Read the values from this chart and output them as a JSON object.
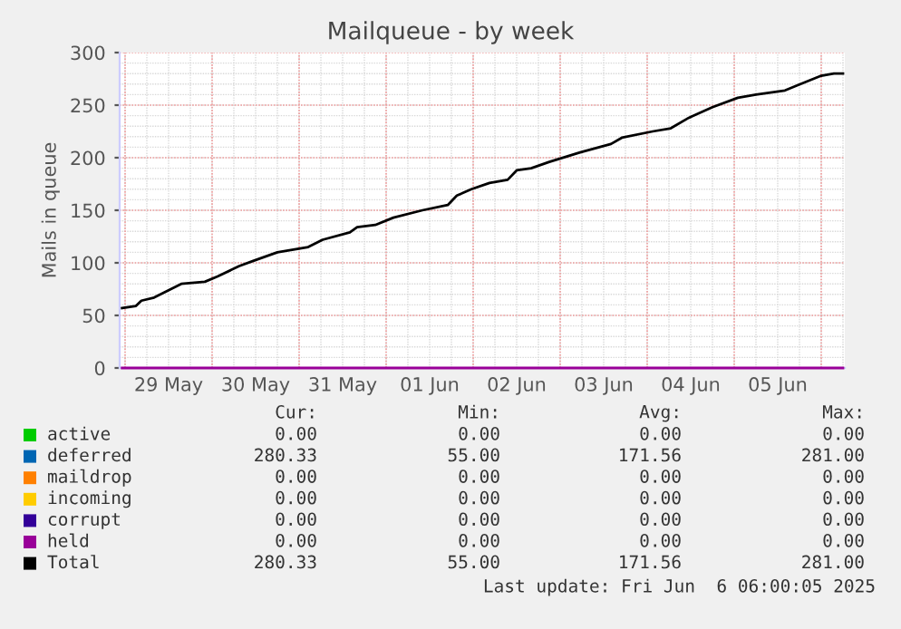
{
  "chart_data": {
    "type": "line",
    "title": "Mailqueue - by week",
    "ylabel": "Mails in queue",
    "x": [
      "2025-05-28T23:10",
      "2025-05-29T03:00",
      "2025-05-29T04:30",
      "2025-05-29T08:00",
      "2025-05-29T12:00",
      "2025-05-29T15:30",
      "2025-05-29T22:00",
      "2025-05-30T01:30",
      "2025-05-30T07:30",
      "2025-05-30T11:30",
      "2025-05-30T18:00",
      "2025-05-31T02:30",
      "2025-05-31T06:30",
      "2025-05-31T14:00",
      "2025-05-31T16:00",
      "2025-05-31T21:00",
      "2025-06-01T02:00",
      "2025-06-01T10:00",
      "2025-06-01T17:00",
      "2025-06-01T19:30",
      "2025-06-01T23:30",
      "2025-06-02T04:30",
      "2025-06-02T09:30",
      "2025-06-02T12:00",
      "2025-06-02T16:00",
      "2025-06-02T21:00",
      "2025-06-03T05:30",
      "2025-06-03T14:00",
      "2025-06-03T17:00",
      "2025-06-04T01:30",
      "2025-06-04T06:30",
      "2025-06-04T11:30",
      "2025-06-04T18:00",
      "2025-06-05T01:00",
      "2025-06-05T06:00",
      "2025-06-05T14:00",
      "2025-06-05T17:30",
      "2025-06-06T00:00",
      "2025-06-06T03:30",
      "2025-06-06T06:00"
    ],
    "series": [
      {
        "name": "active",
        "color": "#00cc00",
        "values": [
          null,
          null,
          null,
          null,
          null,
          null,
          null,
          null,
          null,
          null,
          null,
          null,
          null,
          null,
          null,
          null,
          null,
          null,
          null,
          null,
          null,
          null,
          null,
          null,
          null,
          null,
          null,
          null,
          null,
          null,
          null,
          null,
          null,
          null,
          null,
          null,
          null,
          null,
          null,
          null
        ]
      },
      {
        "name": "deferred",
        "color": "#0066b3",
        "values": [
          null,
          null,
          null,
          null,
          null,
          null,
          null,
          null,
          null,
          null,
          null,
          null,
          null,
          null,
          null,
          null,
          null,
          null,
          null,
          null,
          null,
          null,
          null,
          null,
          null,
          null,
          null,
          null,
          null,
          null,
          null,
          null,
          null,
          null,
          null,
          null,
          null,
          null,
          null,
          null
        ]
      },
      {
        "name": "maildrop",
        "color": "#ff8000",
        "values": [
          null,
          null,
          null,
          null,
          null,
          null,
          null,
          null,
          null,
          null,
          null,
          null,
          null,
          null,
          null,
          null,
          null,
          null,
          null,
          null,
          null,
          null,
          null,
          null,
          null,
          null,
          null,
          null,
          null,
          null,
          null,
          null,
          null,
          null,
          null,
          null,
          null,
          null,
          null,
          null
        ]
      },
      {
        "name": "incoming",
        "color": "#ffcc00",
        "values": [
          null,
          null,
          null,
          null,
          null,
          null,
          null,
          null,
          null,
          null,
          null,
          null,
          null,
          null,
          null,
          null,
          null,
          null,
          null,
          null,
          null,
          null,
          null,
          null,
          null,
          null,
          null,
          null,
          null,
          null,
          null,
          null,
          null,
          null,
          null,
          null,
          null,
          null,
          null,
          null
        ]
      },
      {
        "name": "corrupt",
        "color": "#330099",
        "values": [
          null,
          null,
          null,
          null,
          null,
          null,
          null,
          null,
          null,
          null,
          null,
          null,
          null,
          null,
          null,
          null,
          null,
          null,
          null,
          null,
          null,
          null,
          null,
          null,
          null,
          null,
          null,
          null,
          null,
          null,
          null,
          null,
          null,
          null,
          null,
          null,
          null,
          null,
          null,
          null
        ]
      },
      {
        "name": "held",
        "color": "#990099",
        "x": [
          "2025-05-28T23:10",
          "2025-06-06T06:00"
        ],
        "values": [
          0,
          0
        ]
      },
      {
        "name": "Total",
        "color": "#000000",
        "values": [
          57,
          59,
          64,
          67,
          74,
          80,
          82,
          87,
          97,
          102,
          110,
          115,
          122,
          129,
          134,
          136,
          143,
          150,
          155,
          164,
          170,
          176,
          179,
          188,
          190,
          196,
          205,
          213,
          219,
          225,
          228,
          238,
          248,
          257,
          260,
          264,
          269,
          278,
          280,
          280
        ]
      }
    ],
    "xlim": [
      "2025-05-28T22:30",
      "2025-06-06T06:30"
    ],
    "xticks": [
      {
        "value": "2025-05-29T00:00",
        "label": null
      },
      {
        "value": "2025-05-29T12:00",
        "label": "29 May"
      },
      {
        "value": "2025-05-30T00:00",
        "label": null
      },
      {
        "value": "2025-05-30T12:00",
        "label": "30 May"
      },
      {
        "value": "2025-05-31T00:00",
        "label": null
      },
      {
        "value": "2025-05-31T12:00",
        "label": "31 May"
      },
      {
        "value": "2025-06-01T00:00",
        "label": null
      },
      {
        "value": "2025-06-01T12:00",
        "label": "01 Jun"
      },
      {
        "value": "2025-06-02T00:00",
        "label": null
      },
      {
        "value": "2025-06-02T12:00",
        "label": "02 Jun"
      },
      {
        "value": "2025-06-03T00:00",
        "label": null
      },
      {
        "value": "2025-06-03T12:00",
        "label": "03 Jun"
      },
      {
        "value": "2025-06-04T00:00",
        "label": null
      },
      {
        "value": "2025-06-04T12:00",
        "label": "04 Jun"
      },
      {
        "value": "2025-06-05T00:00",
        "label": null
      },
      {
        "value": "2025-06-05T12:00",
        "label": "05 Jun"
      },
      {
        "value": "2025-06-06T00:00",
        "label": null
      }
    ],
    "ylim": [
      0,
      300
    ],
    "yticks": [
      0,
      50,
      100,
      150,
      200,
      250,
      300
    ],
    "grid": true,
    "legend": "bottom",
    "marker": "none",
    "line_style": "solid",
    "annotations": [
      "Cur:",
      "Min:",
      "Avg:",
      "Max:",
      "0.00",
      "0.00",
      "0.00",
      "0.00",
      "280.33",
      "55.00",
      "171.56",
      "281.00",
      "0.00",
      "0.00",
      "0.00",
      "0.00",
      "0.00",
      "0.00",
      "0.00",
      "0.00",
      "0.00",
      "0.00",
      "0.00",
      "0.00",
      "0.00",
      "0.00",
      "0.00",
      "0.00",
      "280.33",
      "55.00",
      "171.56",
      "281.00",
      "Last update: Fri Jun  6 06:00:05 2025"
    ]
  }
}
